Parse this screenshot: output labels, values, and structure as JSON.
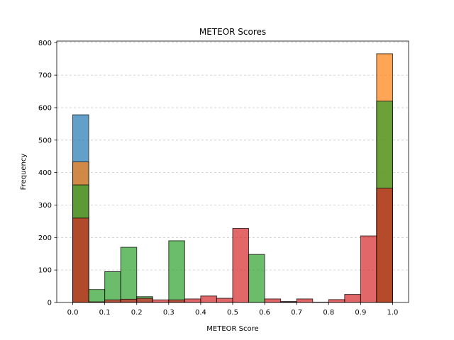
{
  "chart_data": {
    "type": "bar",
    "subtype": "overlaid-histogram",
    "title": "METEOR Scores",
    "xlabel": "METEOR Score",
    "ylabel": "Frequency",
    "xlim": [
      -0.05,
      1.05
    ],
    "ylim": [
      0,
      805
    ],
    "xticks": [
      "0.0",
      "0.1",
      "0.2",
      "0.3",
      "0.4",
      "0.5",
      "0.6",
      "0.7",
      "0.8",
      "0.9",
      "1.0"
    ],
    "yticks": [
      "0",
      "100",
      "200",
      "300",
      "400",
      "500",
      "600",
      "700",
      "800"
    ],
    "grid": "y-dashed",
    "bin_edges": [
      0.0,
      0.05,
      0.1,
      0.15,
      0.2,
      0.25,
      0.3,
      0.35,
      0.4,
      0.45,
      0.5,
      0.55,
      0.6,
      0.65,
      0.7,
      0.75,
      0.8,
      0.85,
      0.9,
      0.95,
      1.0
    ],
    "alpha": 0.7,
    "series": [
      {
        "color": "#1f77b4",
        "values": [
          578,
          0,
          0,
          0,
          0,
          0,
          0,
          0,
          0,
          0,
          0,
          0,
          0,
          0,
          0,
          0,
          0,
          0,
          0,
          0
        ]
      },
      {
        "color": "#ff7f0e",
        "values": [
          433,
          0,
          0,
          0,
          0,
          0,
          0,
          0,
          0,
          0,
          0,
          0,
          0,
          0,
          0,
          0,
          0,
          0,
          0,
          766
        ]
      },
      {
        "color": "#2ca02c",
        "values": [
          362,
          40,
          95,
          170,
          18,
          0,
          190,
          0,
          0,
          0,
          0,
          148,
          0,
          3,
          0,
          0,
          0,
          0,
          0,
          620
        ]
      },
      {
        "color": "#d62728",
        "values": [
          260,
          2,
          8,
          10,
          13,
          8,
          8,
          11,
          20,
          13,
          228,
          0,
          11,
          2,
          11,
          1,
          9,
          25,
          205,
          352
        ]
      }
    ]
  }
}
